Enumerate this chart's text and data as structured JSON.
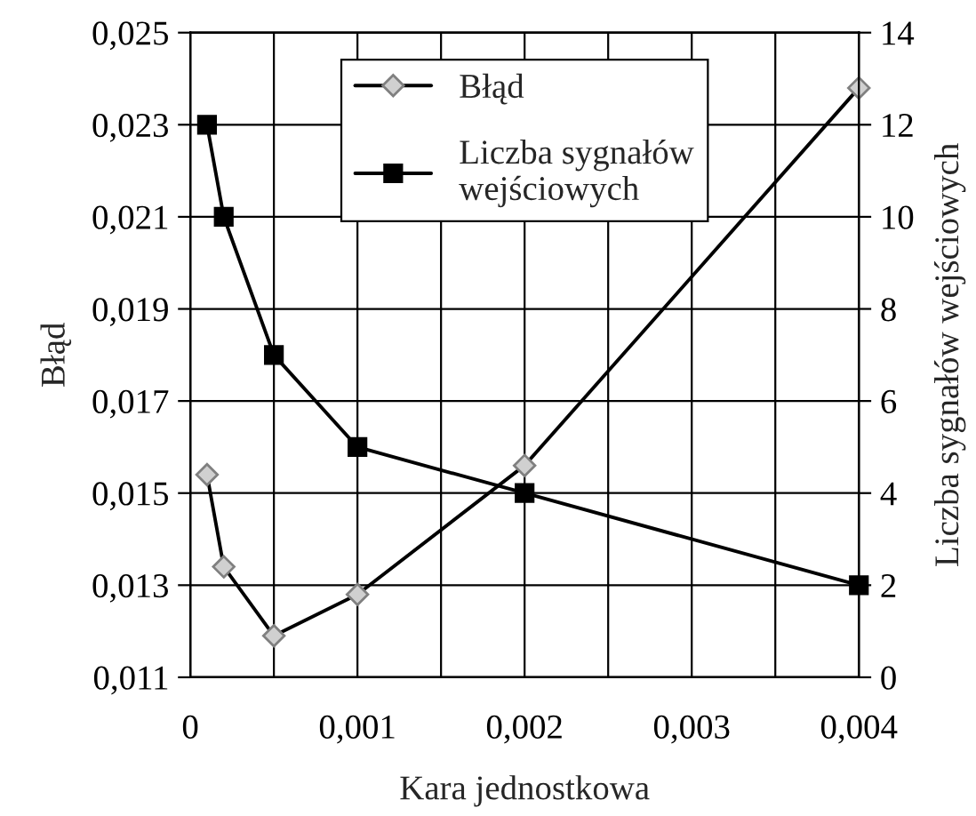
{
  "chart_data": {
    "type": "line",
    "xlabel": "Kara jednostkowa",
    "ylabel": "Błąd",
    "y2label": "Liczba sygnałów wejściowych",
    "x": [
      0.0001,
      0.0002,
      0.0005,
      0.001,
      0.002,
      0.004
    ],
    "series": [
      {
        "name": "Błąd",
        "color": "#d0d0d0",
        "marker": "diamond",
        "values": [
          0.0154,
          0.0134,
          0.0119,
          0.0128,
          0.0156,
          0.0238
        ]
      },
      {
        "name": "Liczba sygnałów wejściowych",
        "color": "#000000",
        "marker": "square",
        "axis": "y2",
        "values": [
          12,
          10,
          7,
          5,
          4,
          2
        ]
      }
    ],
    "xlim": [
      0,
      0.004
    ],
    "xticks": [
      0,
      {
        "value": 0.0005,
        "label": null
      },
      {
        "value": 0.001,
        "label": "0,001"
      },
      {
        "value": 0.0015,
        "label": null
      },
      {
        "value": 0.002,
        "label": "0,002"
      },
      {
        "value": 0.0025,
        "label": null
      },
      {
        "value": 0.003,
        "label": "0,003"
      },
      {
        "value": 0.0035,
        "label": null
      },
      {
        "value": 0.004,
        "label": "0,004"
      }
    ],
    "ylim": [
      0.011,
      0.025
    ],
    "yticks": [
      {
        "value": 0.011,
        "label": "0,011"
      },
      {
        "value": 0.013,
        "label": "0,013"
      },
      {
        "value": 0.015,
        "label": "0,015"
      },
      {
        "value": 0.017,
        "label": "0,017"
      },
      {
        "value": 0.019,
        "label": "0,019"
      },
      {
        "value": 0.021,
        "label": "0,021"
      },
      {
        "value": 0.023,
        "label": "0,023"
      },
      {
        "value": 0.025,
        "label": "0,025"
      }
    ],
    "y2lim": [
      0,
      14
    ],
    "y2ticks": [
      0,
      2,
      4,
      6,
      8,
      10,
      12,
      14
    ],
    "grid": true,
    "legend": "top",
    "line_style": "solid"
  }
}
